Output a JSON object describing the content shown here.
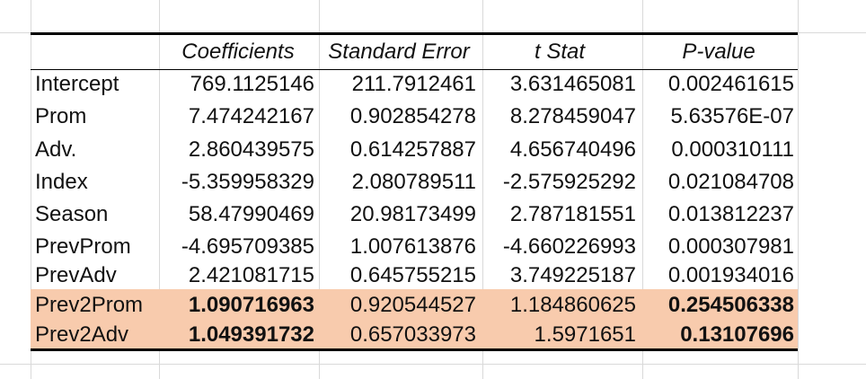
{
  "table": {
    "headers": [
      "",
      "Coefficients",
      "Standard Error",
      "t Stat",
      "P-value"
    ],
    "rows": [
      {
        "label": "Intercept",
        "coef": "769.1125146",
        "se": "211.7912461",
        "t": "3.631465081",
        "p": "0.002461615"
      },
      {
        "label": "Prom",
        "coef": "7.474242167",
        "se": "0.902854278",
        "t": "8.278459047",
        "p": "5.63576E-07"
      },
      {
        "label": "Adv.",
        "coef": "2.860439575",
        "se": "0.614257887",
        "t": "4.656740496",
        "p": "0.000310111"
      },
      {
        "label": "Index",
        "coef": "-5.359958329",
        "se": "2.080789511",
        "t": "-2.575925292",
        "p": "0.021084708"
      },
      {
        "label": "Season",
        "coef": "58.47990469",
        "se": "20.98173499",
        "t": "2.787181551",
        "p": "0.013812237"
      },
      {
        "label": "PrevProm",
        "coef": "-4.695709385",
        "se": "1.007613876",
        "t": "-4.660226993",
        "p": "0.000307981"
      },
      {
        "label": "PrevAdv",
        "coef": "2.421081715",
        "se": "0.645755215",
        "t": "3.749225187",
        "p": "0.001934016"
      },
      {
        "label": "Prev2Prom",
        "coef": "1.090716963",
        "se": "0.920544527",
        "t": "1.184860625",
        "p": "0.254506338"
      },
      {
        "label": "Prev2Adv",
        "coef": "1.049391732",
        "se": "0.657033973",
        "t": "1.5971651",
        "p": "0.13107696"
      }
    ]
  },
  "colors": {
    "highlight": "#f8cbad",
    "gridline": "#d9d9d9"
  }
}
